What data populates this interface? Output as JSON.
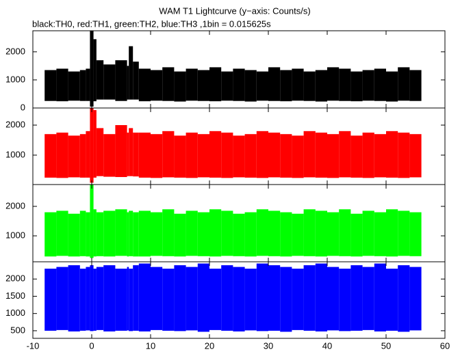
{
  "chart_data": [
    {
      "type": "range",
      "title": "WAM T1 Lightcurve (y−axis: Counts/s)",
      "subtitle": "black:TH0, red:TH1, green:TH2, blue:TH3 ,1bin = 0.015625s",
      "color": "#000000",
      "bins": [
        -8,
        -6,
        -4,
        -2,
        -1,
        -0.3,
        0.3,
        0.8,
        2,
        4,
        6,
        6.3,
        7,
        8,
        10,
        12,
        14,
        16,
        18,
        20,
        22,
        24,
        26,
        28,
        30,
        32,
        34,
        36,
        38,
        40,
        42,
        44,
        46,
        48,
        50,
        52,
        54,
        56
      ],
      "low": [
        250,
        240,
        260,
        250,
        250,
        50,
        240,
        300,
        300,
        250,
        300,
        300,
        300,
        240,
        260,
        250,
        230,
        260,
        250,
        240,
        260,
        250,
        230,
        260,
        250,
        240,
        260,
        250,
        230,
        260,
        250,
        240,
        260,
        250,
        230,
        260,
        250
      ],
      "high": [
        1350,
        1400,
        1300,
        1350,
        1400,
        2750,
        2450,
        1700,
        1550,
        1700,
        1500,
        2200,
        1650,
        1400,
        1350,
        1450,
        1300,
        1400,
        1350,
        1450,
        1300,
        1400,
        1350,
        1300,
        1450,
        1350,
        1400,
        1300,
        1350,
        1450,
        1400,
        1300,
        1350,
        1400,
        1300,
        1450,
        1350
      ],
      "xlim": [
        -10,
        60
      ],
      "ylim": [
        0,
        2750
      ],
      "yticks": [
        0,
        1000,
        2000
      ]
    },
    {
      "type": "range",
      "color": "#ff0000",
      "bins": [
        -8,
        -6,
        -4,
        -2,
        -1,
        -0.3,
        0.3,
        0.8,
        2,
        4,
        6,
        6.3,
        7,
        8,
        10,
        12,
        14,
        16,
        18,
        20,
        22,
        24,
        26,
        28,
        30,
        32,
        34,
        36,
        38,
        40,
        42,
        44,
        46,
        48,
        50,
        52,
        54,
        56
      ],
      "low": [
        250,
        240,
        260,
        250,
        250,
        80,
        250,
        300,
        280,
        270,
        300,
        300,
        290,
        250,
        240,
        260,
        250,
        240,
        260,
        250,
        240,
        260,
        250,
        240,
        260,
        250,
        240,
        260,
        250,
        240,
        260,
        250,
        240,
        260,
        250,
        240,
        260
      ],
      "high": [
        1700,
        1750,
        1650,
        1700,
        1800,
        2570,
        2500,
        1900,
        1700,
        2000,
        1750,
        1900,
        1750,
        1750,
        1700,
        1800,
        1650,
        1750,
        1700,
        1800,
        1750,
        1650,
        1700,
        1800,
        1750,
        1700,
        1650,
        1800,
        1750,
        1700,
        1800,
        1650,
        1750,
        1700,
        1800,
        1750,
        1700
      ],
      "xlim": [
        -10,
        60
      ],
      "ylim": [
        20,
        2570
      ],
      "yticks": [
        1000,
        2000
      ]
    },
    {
      "type": "range",
      "color": "#00ff00",
      "bins": [
        -8,
        -6,
        -4,
        -2,
        -1,
        -0.3,
        0.3,
        0.8,
        2,
        4,
        6,
        6.3,
        7,
        8,
        10,
        12,
        14,
        16,
        18,
        20,
        22,
        24,
        26,
        28,
        30,
        32,
        34,
        36,
        38,
        40,
        42,
        44,
        46,
        48,
        50,
        52,
        54,
        56
      ],
      "low": [
        300,
        320,
        300,
        310,
        300,
        250,
        300,
        310,
        300,
        320,
        300,
        310,
        300,
        300,
        320,
        310,
        300,
        320,
        310,
        300,
        320,
        310,
        300,
        320,
        310,
        300,
        320,
        310,
        300,
        320,
        310,
        300,
        320,
        310,
        300,
        320,
        310
      ],
      "high": [
        1800,
        1850,
        1750,
        1850,
        1800,
        2740,
        1900,
        1800,
        1850,
        1900,
        1800,
        1850,
        1800,
        1850,
        1800,
        1900,
        1750,
        1850,
        1800,
        1900,
        1850,
        1750,
        1800,
        1900,
        1850,
        1800,
        1750,
        1900,
        1850,
        1800,
        1900,
        1750,
        1850,
        1800,
        1900,
        1850,
        1800
      ],
      "xlim": [
        -10,
        60
      ],
      "ylim": [
        120,
        2740
      ],
      "yticks": [
        1000,
        2000
      ]
    },
    {
      "type": "range",
      "color": "#0000ff",
      "bins": [
        -8,
        -6,
        -4,
        -2,
        -1,
        -0.3,
        0.3,
        0.8,
        2,
        4,
        6,
        6.3,
        7,
        8,
        10,
        12,
        14,
        16,
        18,
        20,
        22,
        24,
        26,
        28,
        30,
        32,
        34,
        36,
        38,
        40,
        42,
        44,
        46,
        48,
        50,
        52,
        54,
        56
      ],
      "low": [
        500,
        520,
        480,
        500,
        510,
        490,
        500,
        520,
        480,
        500,
        510,
        490,
        500,
        480,
        520,
        500,
        490,
        510,
        470,
        520,
        500,
        480,
        510,
        490,
        500,
        470,
        520,
        500,
        480,
        510,
        490,
        500,
        520,
        480,
        500,
        470,
        510
      ],
      "high": [
        2300,
        2350,
        2400,
        2300,
        2350,
        2400,
        2300,
        2350,
        2400,
        2300,
        2350,
        2300,
        2400,
        2450,
        2350,
        2300,
        2400,
        2350,
        2450,
        2300,
        2400,
        2350,
        2300,
        2450,
        2400,
        2350,
        2300,
        2400,
        2450,
        2350,
        2300,
        2400,
        2350,
        2450,
        2300,
        2400,
        2350
      ],
      "xlim": [
        -10,
        60
      ],
      "ylim": [
        280,
        2500
      ],
      "yticks": [
        500,
        1000,
        1500,
        2000
      ],
      "xticks": [
        -10,
        0,
        10,
        20,
        30,
        40,
        50,
        60
      ]
    }
  ]
}
